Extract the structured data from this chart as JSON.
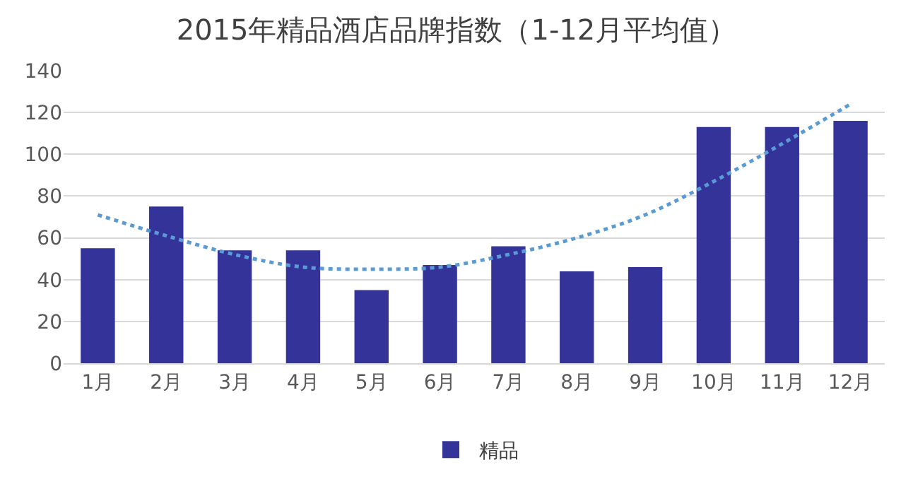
{
  "chart_data": {
    "type": "bar",
    "title": "2015年精品酒店品牌指数（1-12月平均值）",
    "categories": [
      "1月",
      "2月",
      "3月",
      "4月",
      "5月",
      "6月",
      "7月",
      "8月",
      "9月",
      "10月",
      "11月",
      "12月"
    ],
    "series": [
      {
        "name": "精品",
        "color": "#343399",
        "values": [
          55,
          75,
          54,
          54,
          35,
          47,
          56,
          44,
          46,
          113,
          113,
          116
        ]
      },
      {
        "type": "line",
        "color": "#5b9bd5",
        "line_style": "dotted",
        "marker": "none",
        "x": [
          "1月",
          "2月",
          "3月",
          "4月",
          "5月",
          "6月",
          "7月",
          "8月",
          "9月",
          "10月",
          "11月",
          "12月"
        ],
        "values": [
          71,
          61,
          52,
          46,
          45,
          46,
          52,
          60,
          71,
          87,
          105,
          124
        ]
      }
    ],
    "ylim": [
      0,
      140
    ],
    "yticks": [
      0,
      20,
      40,
      60,
      80,
      100,
      120,
      140
    ],
    "grid": "y",
    "legend": "bottom"
  }
}
